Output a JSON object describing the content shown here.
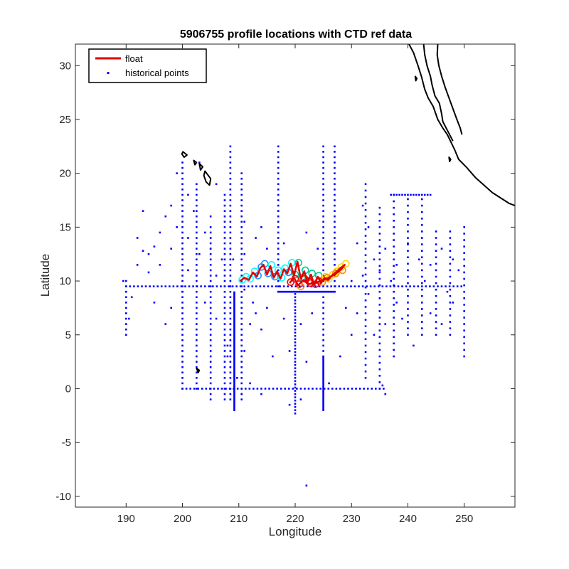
{
  "chart_data": {
    "type": "scatter",
    "title": "5906755 profile locations with CTD ref data",
    "xlabel": "Longitude",
    "ylabel": "Latitude",
    "xlim": [
      181,
      259
    ],
    "ylim": [
      -11,
      32
    ],
    "xticks": [
      190,
      200,
      210,
      220,
      230,
      240,
      250
    ],
    "yticks": [
      -10,
      -5,
      0,
      5,
      10,
      15,
      20,
      25,
      30
    ],
    "grid": false,
    "legend_placement": "top-left",
    "legend": [
      {
        "label": "float",
        "marker": "line",
        "color": "#e00000"
      },
      {
        "label": "historical points",
        "marker": "dot",
        "color": "#0000ff"
      }
    ],
    "colors": {
      "float": "#e00000",
      "historical": "#0000ff",
      "coast": "#000000"
    },
    "float_track": [
      [
        210.2,
        10.0
      ],
      [
        211.0,
        10.3
      ],
      [
        211.8,
        10.1
      ],
      [
        212.5,
        10.8
      ],
      [
        213.2,
        10.4
      ],
      [
        213.8,
        11.2
      ],
      [
        214.4,
        11.5
      ],
      [
        215.0,
        10.6
      ],
      [
        215.6,
        11.4
      ],
      [
        216.2,
        10.3
      ],
      [
        216.8,
        10.9
      ],
      [
        217.4,
        10.2
      ],
      [
        218.0,
        11.1
      ],
      [
        218.6,
        10.7
      ],
      [
        219.2,
        11.6
      ],
      [
        219.8,
        10.5
      ],
      [
        220.4,
        11.8
      ],
      [
        221.0,
        10.2
      ],
      [
        221.6,
        10.9
      ],
      [
        222.2,
        9.9
      ],
      [
        222.8,
        10.6
      ],
      [
        223.4,
        9.6
      ],
      [
        224.0,
        10.4
      ],
      [
        224.6,
        9.8
      ],
      [
        225.2,
        10.3
      ],
      [
        225.8,
        10.1
      ],
      [
        226.5,
        10.5
      ],
      [
        227.2,
        10.8
      ],
      [
        228.0,
        11.2
      ],
      [
        228.8,
        11.5
      ],
      [
        228.2,
        11.1
      ],
      [
        227.0,
        10.6
      ],
      [
        225.5,
        10.2
      ],
      [
        224.0,
        9.9
      ],
      [
        222.5,
        9.7
      ],
      [
        221.5,
        10.1
      ],
      [
        220.5,
        9.6
      ],
      [
        219.8,
        10.3
      ],
      [
        219.0,
        9.8
      ]
    ],
    "historical_points": {
      "vertical_lines": [
        {
          "lon": 190.0,
          "lat": [
            5,
            10
          ],
          "step": 0.5
        },
        {
          "lon": 200.0,
          "lat": [
            0,
            21
          ],
          "step": 0.5
        },
        {
          "lon": 202.5,
          "lat": [
            0,
            19
          ],
          "step": 0.5
        },
        {
          "lon": 205.0,
          "lat": [
            -1,
            15
          ],
          "step": 0.5
        },
        {
          "lon": 207.5,
          "lat": [
            -1,
            18
          ],
          "step": 0.5
        },
        {
          "lon": 208.5,
          "lat": [
            -1,
            22.5
          ],
          "step": 0.5
        },
        {
          "lon": 209.2,
          "lat": [
            -2,
            9
          ],
          "step": 0.15
        },
        {
          "lon": 210.5,
          "lat": [
            -1,
            20
          ],
          "step": 0.5
        },
        {
          "lon": 217.0,
          "lat": [
            9,
            22.5
          ],
          "step": 0.5
        },
        {
          "lon": 220.0,
          "lat": [
            -2.3,
            9
          ],
          "step": 0.3
        },
        {
          "lon": 225.0,
          "lat": [
            -2.0,
            3
          ],
          "step": 0.12
        },
        {
          "lon": 225.0,
          "lat": [
            3,
            22.5
          ],
          "step": 0.5
        },
        {
          "lon": 227.0,
          "lat": [
            9,
            22.5
          ],
          "step": 0.5
        },
        {
          "lon": 232.5,
          "lat": [
            1,
            19
          ],
          "step": 0.6
        },
        {
          "lon": 235.0,
          "lat": [
            0,
            17
          ],
          "step": 0.6
        },
        {
          "lon": 237.5,
          "lat": [
            3,
            18
          ],
          "step": 0.6
        },
        {
          "lon": 240.0,
          "lat": [
            5,
            18
          ],
          "step": 0.6
        },
        {
          "lon": 242.5,
          "lat": [
            5,
            18
          ],
          "step": 0.6
        },
        {
          "lon": 245.0,
          "lat": [
            5,
            15
          ],
          "step": 0.6
        },
        {
          "lon": 247.5,
          "lat": [
            5,
            15
          ],
          "step": 0.6
        },
        {
          "lon": 250.0,
          "lat": [
            3,
            15
          ],
          "step": 0.6
        }
      ],
      "horizontal_lines": [
        {
          "lat": 9.5,
          "lon": [
            190,
            250
          ],
          "step": 0.7
        },
        {
          "lat": 0.0,
          "lon": [
            200,
            236
          ],
          "step": 0.7
        },
        {
          "lat": 9.0,
          "lon": [
            217,
            227
          ],
          "step": 0.2
        },
        {
          "lat": 18.0,
          "lon": [
            237,
            244
          ],
          "step": 0.5
        }
      ],
      "scattered": [
        [
          194,
          12.5
        ],
        [
          193,
          12.8
        ],
        [
          195,
          13.2
        ],
        [
          192,
          11.5
        ],
        [
          196,
          14.5
        ],
        [
          198,
          13.0
        ],
        [
          197,
          16.0
        ],
        [
          193,
          16.5
        ],
        [
          192,
          14.0
        ],
        [
          194,
          10.8
        ],
        [
          196,
          11.5
        ],
        [
          199,
          15.0
        ],
        [
          201,
          14.0
        ],
        [
          202,
          16.5
        ],
        [
          203,
          12.5
        ],
        [
          201,
          11.0
        ],
        [
          204,
          14.5
        ],
        [
          205,
          13.0
        ],
        [
          206,
          10.5
        ],
        [
          205,
          16.0
        ],
        [
          207,
          12.0
        ],
        [
          195,
          8.0
        ],
        [
          197,
          6.0
        ],
        [
          198,
          7.5
        ],
        [
          200,
          9.0
        ],
        [
          204,
          8.0
        ],
        [
          206,
          6.5
        ],
        [
          208,
          4.0
        ],
        [
          211,
          3.5
        ],
        [
          213,
          7.0
        ],
        [
          215,
          7.5
        ],
        [
          214,
          5.5
        ],
        [
          216,
          3.0
        ],
        [
          212,
          6.0
        ],
        [
          218,
          6.5
        ],
        [
          219,
          3.5
        ],
        [
          221,
          6.0
        ],
        [
          222,
          2.5
        ],
        [
          223,
          7.0
        ],
        [
          229,
          7.5
        ],
        [
          230,
          5.0
        ],
        [
          231,
          7.0
        ],
        [
          228,
          3.0
        ],
        [
          234,
          5.0
        ],
        [
          236,
          6.0
        ],
        [
          238,
          8.0
        ],
        [
          239,
          6.5
        ],
        [
          241,
          4.0
        ],
        [
          244,
          7.0
        ],
        [
          246,
          6.0
        ],
        [
          248,
          8.0
        ],
        [
          244,
          11.5
        ],
        [
          246,
          13.0
        ],
        [
          248,
          12.0
        ],
        [
          231,
          13.5
        ],
        [
          233,
          15.0
        ],
        [
          236,
          13.0
        ],
        [
          238,
          11.5
        ],
        [
          240,
          13.5
        ],
        [
          242,
          12.0
        ],
        [
          222,
          -9.0
        ],
        [
          208,
          3.0
        ],
        [
          211,
          15.5
        ],
        [
          213,
          14.0
        ],
        [
          215,
          13.0
        ],
        [
          214,
          15.0
        ],
        [
          218,
          13.5
        ],
        [
          222,
          14.5
        ],
        [
          224,
          13.0
        ],
        [
          209,
          12.0
        ],
        [
          211,
          12.5
        ],
        [
          199,
          20.0
        ],
        [
          203,
          21.0
        ],
        [
          201,
          18.0
        ],
        [
          198,
          17.0
        ],
        [
          206,
          19.0
        ],
        [
          232,
          17.0
        ],
        [
          234,
          12.0
        ],
        [
          209.7,
          1.0
        ],
        [
          212,
          0.5
        ],
        [
          214,
          -0.5
        ],
        [
          219,
          -1.5
        ],
        [
          221,
          -1.0
        ],
        [
          226,
          0.5
        ],
        [
          236,
          -0.5
        ],
        [
          235.5,
          0.3
        ],
        [
          210.5,
          -0.5
        ],
        [
          211,
          9.2
        ],
        [
          212.5,
          8.0
        ],
        [
          230,
          10.0
        ],
        [
          232,
          10.5
        ],
        [
          233,
          8.8
        ],
        [
          235,
          11.0
        ],
        [
          237,
          10.0
        ],
        [
          189.5,
          10.0
        ],
        [
          191,
          8.5
        ],
        [
          190.5,
          6.5
        ],
        [
          243,
          10.0
        ],
        [
          247,
          9.0
        ],
        [
          249,
          11.0
        ]
      ]
    },
    "float_profile_markers": {
      "color_order": [
        "#00ffff",
        "#1e90ff",
        "#00c896",
        "#ffd700",
        "#ff8c00",
        "#ff0000"
      ],
      "points": [
        [
          210.6,
          10.1,
          0
        ],
        [
          211.3,
          10.4,
          0
        ],
        [
          212.0,
          10.2,
          0
        ],
        [
          212.8,
          10.9,
          0
        ],
        [
          213.4,
          10.5,
          1
        ],
        [
          214.0,
          11.3,
          1
        ],
        [
          214.6,
          11.6,
          1
        ],
        [
          215.2,
          10.7,
          1
        ],
        [
          215.8,
          11.5,
          0
        ],
        [
          216.4,
          10.4,
          1
        ],
        [
          217.0,
          11.0,
          0
        ],
        [
          217.6,
          10.3,
          0
        ],
        [
          218.2,
          11.2,
          0
        ],
        [
          218.8,
          10.8,
          1
        ],
        [
          219.4,
          11.7,
          0
        ],
        [
          220.0,
          10.6,
          2
        ],
        [
          220.6,
          11.7,
          2
        ],
        [
          221.2,
          10.3,
          2
        ],
        [
          221.8,
          11.0,
          2
        ],
        [
          222.4,
          10.0,
          5
        ],
        [
          223.0,
          10.7,
          2
        ],
        [
          223.6,
          9.7,
          5
        ],
        [
          224.2,
          10.5,
          2
        ],
        [
          224.8,
          9.9,
          4
        ],
        [
          225.4,
          10.4,
          3
        ],
        [
          226.0,
          10.2,
          3
        ],
        [
          226.7,
          10.6,
          3
        ],
        [
          227.4,
          10.9,
          3
        ],
        [
          228.2,
          11.3,
          3
        ],
        [
          229.0,
          11.6,
          3
        ],
        [
          228.4,
          11.0,
          4
        ],
        [
          227.2,
          10.7,
          4
        ],
        [
          225.7,
          10.3,
          4
        ],
        [
          224.2,
          10.0,
          5
        ],
        [
          222.7,
          9.8,
          5
        ],
        [
          221.7,
          10.2,
          5
        ],
        [
          220.7,
          9.7,
          5
        ],
        [
          220.0,
          10.2,
          5
        ],
        [
          219.2,
          9.9,
          5
        ],
        [
          221.0,
          9.5,
          4
        ]
      ]
    },
    "coastline": {
      "mainland": [
        [
          240.2,
          32.0
        ],
        [
          241.0,
          31.2
        ],
        [
          241.8,
          30.0
        ],
        [
          242.4,
          29.0
        ],
        [
          243.0,
          27.8
        ],
        [
          243.6,
          27.0
        ],
        [
          244.5,
          26.2
        ],
        [
          245.3,
          25.0
        ],
        [
          246.2,
          24.2
        ],
        [
          247.0,
          23.6
        ],
        [
          248.3,
          22.2
        ],
        [
          249.0,
          21.3
        ],
        [
          250.5,
          20.5
        ],
        [
          252.0,
          19.6
        ],
        [
          253.5,
          18.9
        ],
        [
          255.0,
          18.2
        ],
        [
          256.5,
          17.7
        ],
        [
          258.0,
          17.2
        ],
        [
          259.0,
          17.0
        ]
      ],
      "baja_outer": [
        [
          242.8,
          32.0
        ],
        [
          243.0,
          31.0
        ],
        [
          243.4,
          30.0
        ],
        [
          244.0,
          29.0
        ],
        [
          244.3,
          28.2
        ],
        [
          244.8,
          27.2
        ],
        [
          245.6,
          26.5
        ],
        [
          246.0,
          25.5
        ],
        [
          246.2,
          24.8
        ],
        [
          247.0,
          24.0
        ],
        [
          248.0,
          23.0
        ]
      ],
      "baja_inner": [
        [
          245.3,
          32.0
        ],
        [
          245.2,
          31.0
        ],
        [
          245.5,
          30.0
        ],
        [
          246.0,
          29.0
        ],
        [
          246.6,
          28.0
        ],
        [
          247.3,
          27.0
        ],
        [
          248.0,
          26.0
        ],
        [
          248.7,
          25.0
        ],
        [
          249.3,
          24.2
        ],
        [
          249.6,
          23.6
        ]
      ],
      "islands": [
        [
          [
            200.1,
            22.0
          ],
          [
            200.8,
            21.7
          ],
          [
            200.3,
            21.5
          ],
          [
            199.9,
            21.8
          ],
          [
            200.1,
            22.0
          ]
        ],
        [
          [
            202.0,
            21.2
          ],
          [
            202.5,
            21.0
          ],
          [
            202.2,
            20.8
          ],
          [
            202.0,
            21.2
          ]
        ],
        [
          [
            203.0,
            20.9
          ],
          [
            203.6,
            20.6
          ],
          [
            203.2,
            20.3
          ],
          [
            203.0,
            20.9
          ]
        ],
        [
          [
            204.0,
            20.2
          ],
          [
            205.0,
            19.5
          ],
          [
            204.8,
            18.9
          ],
          [
            204.2,
            19.2
          ],
          [
            203.8,
            19.8
          ],
          [
            204.0,
            20.2
          ]
        ],
        [
          [
            202.5,
            1.9
          ],
          [
            203.0,
            1.7
          ],
          [
            202.8,
            1.5
          ],
          [
            202.5,
            1.9
          ]
        ],
        [
          [
            241.3,
            29.0
          ],
          [
            241.6,
            28.8
          ],
          [
            241.4,
            28.6
          ],
          [
            241.3,
            29.0
          ]
        ],
        [
          [
            247.3,
            21.5
          ],
          [
            247.6,
            21.3
          ],
          [
            247.4,
            21.1
          ],
          [
            247.3,
            21.5
          ]
        ]
      ]
    }
  }
}
